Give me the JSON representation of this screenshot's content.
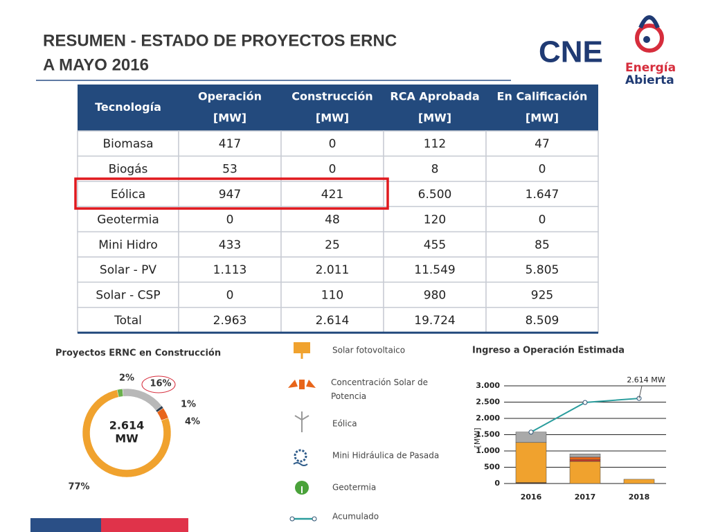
{
  "header": {
    "title_lines": [
      "RESUMEN - ESTADO DE PROYECTOS ERNC",
      "A MAYO 2016"
    ],
    "logo_cne": "CNE",
    "logo_energia": [
      "Energía",
      "Abierta"
    ]
  },
  "table": {
    "header": [
      [
        "Tecnología"
      ],
      [
        "Operación",
        "[MW]"
      ],
      [
        "Construcción",
        "[MW]"
      ],
      [
        "RCA Aprobada",
        "[MW]"
      ],
      [
        "En Calificación",
        "[MW]"
      ]
    ],
    "rows": [
      [
        "Biomasa",
        "417",
        "0",
        "112",
        "47"
      ],
      [
        "Biogás",
        "53",
        "0",
        "8",
        "0"
      ],
      [
        "Eólica",
        "947",
        "421",
        "6.500",
        "1.647"
      ],
      [
        "Geotermia",
        "0",
        "48",
        "120",
        "0"
      ],
      [
        "Mini Hidro",
        "433",
        "25",
        "455",
        "85"
      ],
      [
        "Solar - PV",
        "1.113",
        "2.011",
        "11.549",
        "5.805"
      ],
      [
        "Solar - CSP",
        "0",
        "110",
        "980",
        "925"
      ],
      [
        "Total",
        "2.963",
        "2.614",
        "19.724",
        "8.509"
      ]
    ]
  },
  "donut": {
    "title": "Proyectos ERNC en Construcción",
    "center_lines": [
      "2.614",
      "MW"
    ],
    "values": [
      2,
      16,
      1,
      4,
      77
    ],
    "value_labels": [
      "2%",
      "16%",
      "1%",
      "4%",
      "77%"
    ],
    "colors": [
      "#6ab04c",
      "#b8b8b8",
      "#2f3e4e",
      "#e8651a",
      "#f0a22e"
    ]
  },
  "legend": [
    "Solar fotovoltaico",
    "Concentración Solar de Potencia",
    "Eólica",
    "Mini Hidráulica de Pasada",
    "Geotermia",
    "Acumulado"
  ],
  "bar_chart": {
    "title": "Ingreso a Operación Estimada",
    "y_label": "[MW]",
    "annotation": "2.614 MW",
    "categories": [
      "2016",
      "2017",
      "2018"
    ],
    "series": [
      {
        "color": "#4a3020",
        "values": [
          30,
          0,
          0
        ]
      },
      {
        "color": "#f0a22e",
        "values": [
          1230,
          680,
          130
        ]
      },
      {
        "color": "#c0392b",
        "values": [
          0,
          50,
          0
        ]
      },
      {
        "color": "#e8651a",
        "values": [
          0,
          80,
          0
        ]
      },
      {
        "color": "#a9a9a9",
        "values": [
          320,
          100,
          0
        ]
      }
    ],
    "line": {
      "color": "#2a9d9d",
      "values": [
        1580,
        2490,
        2614
      ]
    },
    "ylim": [
      0,
      3000
    ],
    "yticks": [
      0,
      500,
      {
        "value": 1000,
        "label": "1.000"
      },
      {
        "value": 1500,
        "label": "1.500"
      },
      {
        "value": 2000,
        "label": "2.000"
      },
      {
        "value": 2500,
        "label": "2.500"
      },
      {
        "value": 3000,
        "label": "3.000"
      }
    ]
  }
}
